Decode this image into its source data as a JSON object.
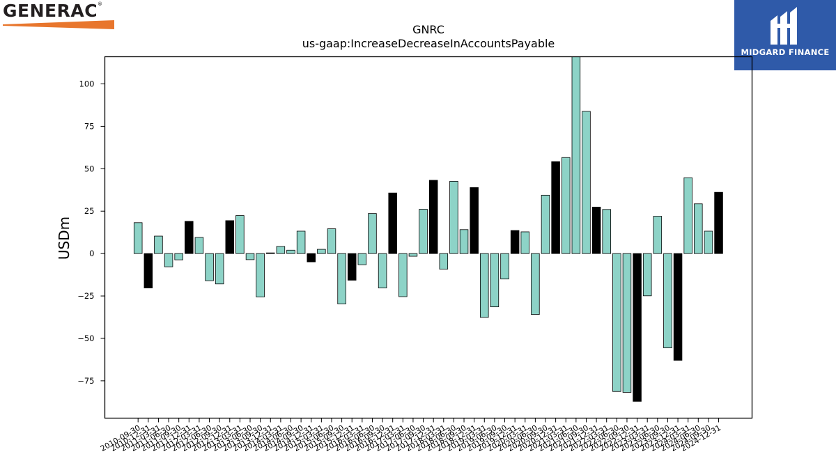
{
  "branding": {
    "company_logo_text": "GENERAC",
    "company_logo_mark": "®",
    "publisher_logo_text": "MIDGARD FINANCE",
    "colors": {
      "generac_dark": "#231f20",
      "generac_orange": "#e8762d",
      "midgard_blue": "#2f5aa9"
    }
  },
  "chart_data": {
    "type": "bar",
    "title": "GNRC",
    "subtitle": "us-gaap:IncreaseDecreaseInAccountsPayable",
    "xlabel": "",
    "ylabel": "USDm",
    "ylim": [
      -97,
      116
    ],
    "yticks": [
      -75,
      -50,
      -25,
      0,
      25,
      50,
      75,
      100
    ],
    "grid": false,
    "bar_colors": {
      "quarterly": "#8dd3c7",
      "annual": "#000000",
      "edge": "#000000"
    },
    "categories": [
      "2010-09-30",
      "2010-12-31",
      "2011-03-31",
      "2011-06-30",
      "2011-09-30",
      "2011-12-31",
      "2012-03-31",
      "2012-06-30",
      "2012-09-30",
      "2012-12-31",
      "2013-03-31",
      "2013-06-30",
      "2013-09-30",
      "2013-12-31",
      "2014-03-31",
      "2014-06-30",
      "2014-09-30",
      "2014-12-31",
      "2015-03-31",
      "2015-06-30",
      "2015-09-30",
      "2015-12-31",
      "2016-03-31",
      "2016-06-30",
      "2016-09-30",
      "2016-12-31",
      "2017-03-31",
      "2017-06-30",
      "2017-09-30",
      "2017-12-31",
      "2018-03-31",
      "2018-06-30",
      "2018-09-30",
      "2018-12-31",
      "2019-03-31",
      "2019-06-30",
      "2019-09-30",
      "2019-12-31",
      "2020-03-31",
      "2020-06-30",
      "2020-09-30",
      "2020-12-31",
      "2021-03-31",
      "2021-06-30",
      "2021-09-30",
      "2021-12-31",
      "2022-03-31",
      "2022-06-30",
      "2022-09-30",
      "2022-12-31",
      "2023-03-31",
      "2023-06-30",
      "2023-09-30",
      "2023-12-31",
      "2024-03-31",
      "2024-06-30",
      "2024-09-30",
      "2024-12-31"
    ],
    "values": [
      18.2,
      -20.3,
      10.3,
      -7.8,
      -3.7,
      19.0,
      9.5,
      -16.0,
      -17.9,
      19.4,
      22.4,
      -3.6,
      -25.6,
      0.4,
      4.2,
      2.0,
      13.2,
      -4.9,
      2.5,
      14.6,
      -29.7,
      -15.7,
      -6.6,
      23.6,
      -20.3,
      35.7,
      -25.4,
      -1.6,
      26.1,
      43.2,
      -9.2,
      42.6,
      14.1,
      38.9,
      -37.6,
      -31.4,
      -15.0,
      13.6,
      12.8,
      -35.9,
      34.4,
      54.2,
      56.6,
      118.0,
      83.8,
      27.4,
      26.0,
      -81.3,
      -81.8,
      -87.1,
      -24.9,
      22.0,
      -55.6,
      -62.9,
      44.7,
      29.3,
      13.2,
      36.1
    ],
    "is_annual": [
      false,
      true,
      false,
      false,
      false,
      true,
      false,
      false,
      false,
      true,
      false,
      false,
      false,
      true,
      false,
      false,
      false,
      true,
      false,
      false,
      false,
      true,
      false,
      false,
      false,
      true,
      false,
      false,
      false,
      true,
      false,
      false,
      false,
      true,
      false,
      false,
      false,
      true,
      false,
      false,
      false,
      true,
      false,
      false,
      false,
      true,
      false,
      false,
      false,
      true,
      false,
      false,
      false,
      true,
      false,
      false,
      false,
      true
    ]
  }
}
